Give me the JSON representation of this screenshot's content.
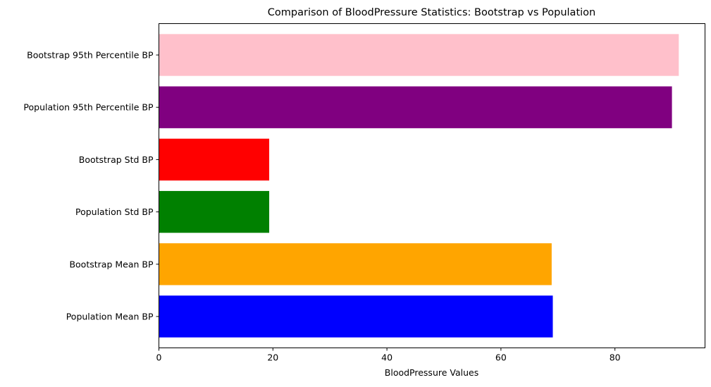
{
  "chart_data": {
    "type": "bar",
    "orientation": "horizontal",
    "title": "Comparison of BloodPressure Statistics: Bootstrap vs Population",
    "xlabel": "BloodPressure Values",
    "ylabel": "",
    "xlim": [
      0,
      95.8
    ],
    "xticks": [
      0,
      20,
      40,
      60,
      80
    ],
    "grid": false,
    "legend": "none",
    "categories": [
      "Population Mean BP",
      "Bootstrap Mean BP",
      "Population Std BP",
      "Bootstrap Std BP",
      "Population 95th Percentile BP",
      "Bootstrap 95th Percentile BP"
    ],
    "values": [
      69.1,
      68.9,
      19.35,
      19.35,
      90.0,
      91.2
    ],
    "colors": [
      "#0000ff",
      "#ffa500",
      "#008000",
      "#ff0000",
      "#800080",
      "#ffc0cb"
    ]
  }
}
